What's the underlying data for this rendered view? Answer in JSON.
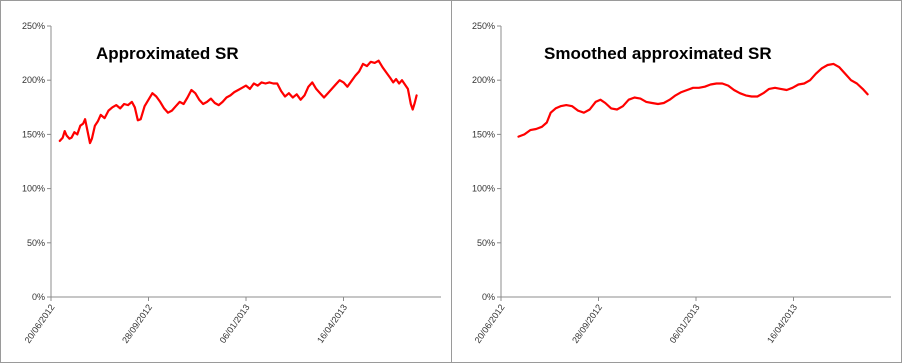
{
  "chart_data": [
    {
      "type": "line",
      "title": "Approximated SR",
      "xlabel": "",
      "ylabel": "",
      "ylim": [
        0,
        2.5
      ],
      "grid": false,
      "y_ticks": [
        "0%",
        "50%",
        "100%",
        "150%",
        "200%",
        "250%"
      ],
      "x_ticks": [
        "20/06/2012",
        "28/09/2012",
        "06/01/2013",
        "16/04/2013"
      ],
      "x_range": [
        "2012-06-20",
        "2013-07-25"
      ],
      "series": [
        {
          "color": "#ff0000",
          "points": [
            [
              "2012-06-29",
              1.44
            ],
            [
              "2012-07-02",
              1.47
            ],
            [
              "2012-07-04",
              1.53
            ],
            [
              "2012-07-06",
              1.49
            ],
            [
              "2012-07-09",
              1.46
            ],
            [
              "2012-07-11",
              1.47
            ],
            [
              "2012-07-14",
              1.52
            ],
            [
              "2012-07-17",
              1.5
            ],
            [
              "2012-07-20",
              1.58
            ],
            [
              "2012-07-23",
              1.6
            ],
            [
              "2012-07-25",
              1.64
            ],
            [
              "2012-07-27",
              1.55
            ],
            [
              "2012-07-30",
              1.42
            ],
            [
              "2012-08-01",
              1.46
            ],
            [
              "2012-08-04",
              1.58
            ],
            [
              "2012-08-07",
              1.62
            ],
            [
              "2012-08-10",
              1.68
            ],
            [
              "2012-08-14",
              1.65
            ],
            [
              "2012-08-18",
              1.72
            ],
            [
              "2012-08-22",
              1.75
            ],
            [
              "2012-08-26",
              1.77
            ],
            [
              "2012-08-30",
              1.74
            ],
            [
              "2012-09-03",
              1.78
            ],
            [
              "2012-09-07",
              1.77
            ],
            [
              "2012-09-11",
              1.8
            ],
            [
              "2012-09-14",
              1.75
            ],
            [
              "2012-09-17",
              1.63
            ],
            [
              "2012-09-20",
              1.64
            ],
            [
              "2012-09-24",
              1.76
            ],
            [
              "2012-09-28",
              1.82
            ],
            [
              "2012-10-02",
              1.88
            ],
            [
              "2012-10-06",
              1.85
            ],
            [
              "2012-10-10",
              1.8
            ],
            [
              "2012-10-14",
              1.74
            ],
            [
              "2012-10-18",
              1.7
            ],
            [
              "2012-10-22",
              1.72
            ],
            [
              "2012-10-26",
              1.76
            ],
            [
              "2012-10-30",
              1.8
            ],
            [
              "2012-11-03",
              1.78
            ],
            [
              "2012-11-07",
              1.84
            ],
            [
              "2012-11-11",
              1.91
            ],
            [
              "2012-11-15",
              1.88
            ],
            [
              "2012-11-19",
              1.82
            ],
            [
              "2012-11-23",
              1.78
            ],
            [
              "2012-11-27",
              1.8
            ],
            [
              "2012-12-01",
              1.83
            ],
            [
              "2012-12-05",
              1.79
            ],
            [
              "2012-12-09",
              1.77
            ],
            [
              "2012-12-13",
              1.8
            ],
            [
              "2012-12-17",
              1.84
            ],
            [
              "2012-12-21",
              1.86
            ],
            [
              "2012-12-25",
              1.89
            ],
            [
              "2012-12-29",
              1.91
            ],
            [
              "2013-01-02",
              1.93
            ],
            [
              "2013-01-06",
              1.95
            ],
            [
              "2013-01-10",
              1.92
            ],
            [
              "2013-01-14",
              1.97
            ],
            [
              "2013-01-18",
              1.95
            ],
            [
              "2013-01-22",
              1.98
            ],
            [
              "2013-01-26",
              1.97
            ],
            [
              "2013-01-30",
              1.98
            ],
            [
              "2013-02-03",
              1.97
            ],
            [
              "2013-02-07",
              1.97
            ],
            [
              "2013-02-11",
              1.9
            ],
            [
              "2013-02-15",
              1.85
            ],
            [
              "2013-02-19",
              1.88
            ],
            [
              "2013-02-23",
              1.84
            ],
            [
              "2013-02-27",
              1.87
            ],
            [
              "2013-03-03",
              1.82
            ],
            [
              "2013-03-07",
              1.86
            ],
            [
              "2013-03-11",
              1.94
            ],
            [
              "2013-03-15",
              1.98
            ],
            [
              "2013-03-19",
              1.92
            ],
            [
              "2013-03-23",
              1.88
            ],
            [
              "2013-03-27",
              1.84
            ],
            [
              "2013-03-31",
              1.88
            ],
            [
              "2013-04-04",
              1.92
            ],
            [
              "2013-04-08",
              1.96
            ],
            [
              "2013-04-12",
              2.0
            ],
            [
              "2013-04-16",
              1.98
            ],
            [
              "2013-04-20",
              1.94
            ],
            [
              "2013-04-24",
              1.99
            ],
            [
              "2013-04-28",
              2.04
            ],
            [
              "2013-05-02",
              2.08
            ],
            [
              "2013-05-06",
              2.15
            ],
            [
              "2013-05-10",
              2.13
            ],
            [
              "2013-05-14",
              2.17
            ],
            [
              "2013-05-18",
              2.16
            ],
            [
              "2013-05-22",
              2.18
            ],
            [
              "2013-05-26",
              2.12
            ],
            [
              "2013-05-30",
              2.07
            ],
            [
              "2013-06-03",
              2.02
            ],
            [
              "2013-06-06",
              1.98
            ],
            [
              "2013-06-09",
              2.01
            ],
            [
              "2013-06-12",
              1.97
            ],
            [
              "2013-06-15",
              2.0
            ],
            [
              "2013-06-18",
              1.96
            ],
            [
              "2013-06-21",
              1.92
            ],
            [
              "2013-06-24",
              1.78
            ],
            [
              "2013-06-26",
              1.73
            ],
            [
              "2013-06-28",
              1.79
            ],
            [
              "2013-06-30",
              1.86
            ]
          ]
        }
      ]
    },
    {
      "type": "line",
      "title": "Smoothed approximated SR",
      "xlabel": "",
      "ylabel": "",
      "ylim": [
        0,
        2.5
      ],
      "grid": false,
      "y_ticks": [
        "0%",
        "50%",
        "100%",
        "150%",
        "200%",
        "250%"
      ],
      "x_ticks": [
        "20/06/2012",
        "28/09/2012",
        "06/01/2013",
        "16/04/2013"
      ],
      "x_range": [
        "2012-06-20",
        "2013-07-25"
      ],
      "series": [
        {
          "color": "#ff0000",
          "points": [
            [
              "2012-07-08",
              1.48
            ],
            [
              "2012-07-14",
              1.5
            ],
            [
              "2012-07-20",
              1.54
            ],
            [
              "2012-07-26",
              1.55
            ],
            [
              "2012-08-01",
              1.57
            ],
            [
              "2012-08-06",
              1.61
            ],
            [
              "2012-08-10",
              1.7
            ],
            [
              "2012-08-15",
              1.74
            ],
            [
              "2012-08-20",
              1.76
            ],
            [
              "2012-08-26",
              1.77
            ],
            [
              "2012-09-01",
              1.76
            ],
            [
              "2012-09-07",
              1.72
            ],
            [
              "2012-09-13",
              1.7
            ],
            [
              "2012-09-19",
              1.73
            ],
            [
              "2012-09-25",
              1.8
            ],
            [
              "2012-09-30",
              1.82
            ],
            [
              "2012-10-05",
              1.79
            ],
            [
              "2012-10-11",
              1.74
            ],
            [
              "2012-10-17",
              1.73
            ],
            [
              "2012-10-23",
              1.76
            ],
            [
              "2012-10-29",
              1.82
            ],
            [
              "2012-11-04",
              1.84
            ],
            [
              "2012-11-10",
              1.83
            ],
            [
              "2012-11-16",
              1.8
            ],
            [
              "2012-11-22",
              1.79
            ],
            [
              "2012-11-28",
              1.78
            ],
            [
              "2012-12-04",
              1.79
            ],
            [
              "2012-12-10",
              1.82
            ],
            [
              "2012-12-16",
              1.86
            ],
            [
              "2012-12-22",
              1.89
            ],
            [
              "2012-12-28",
              1.91
            ],
            [
              "2013-01-03",
              1.93
            ],
            [
              "2013-01-09",
              1.93
            ],
            [
              "2013-01-15",
              1.94
            ],
            [
              "2013-01-21",
              1.96
            ],
            [
              "2013-01-27",
              1.97
            ],
            [
              "2013-02-02",
              1.97
            ],
            [
              "2013-02-08",
              1.95
            ],
            [
              "2013-02-14",
              1.91
            ],
            [
              "2013-02-20",
              1.88
            ],
            [
              "2013-02-26",
              1.86
            ],
            [
              "2013-03-04",
              1.85
            ],
            [
              "2013-03-10",
              1.85
            ],
            [
              "2013-03-16",
              1.88
            ],
            [
              "2013-03-22",
              1.92
            ],
            [
              "2013-03-28",
              1.93
            ],
            [
              "2013-04-03",
              1.92
            ],
            [
              "2013-04-09",
              1.91
            ],
            [
              "2013-04-15",
              1.93
            ],
            [
              "2013-04-21",
              1.96
            ],
            [
              "2013-04-27",
              1.97
            ],
            [
              "2013-05-03",
              2.0
            ],
            [
              "2013-05-09",
              2.06
            ],
            [
              "2013-05-15",
              2.11
            ],
            [
              "2013-05-21",
              2.14
            ],
            [
              "2013-05-27",
              2.15
            ],
            [
              "2013-06-02",
              2.12
            ],
            [
              "2013-06-08",
              2.06
            ],
            [
              "2013-06-14",
              2.0
            ],
            [
              "2013-06-20",
              1.97
            ],
            [
              "2013-06-26",
              1.92
            ],
            [
              "2013-07-01",
              1.87
            ]
          ]
        }
      ]
    }
  ]
}
